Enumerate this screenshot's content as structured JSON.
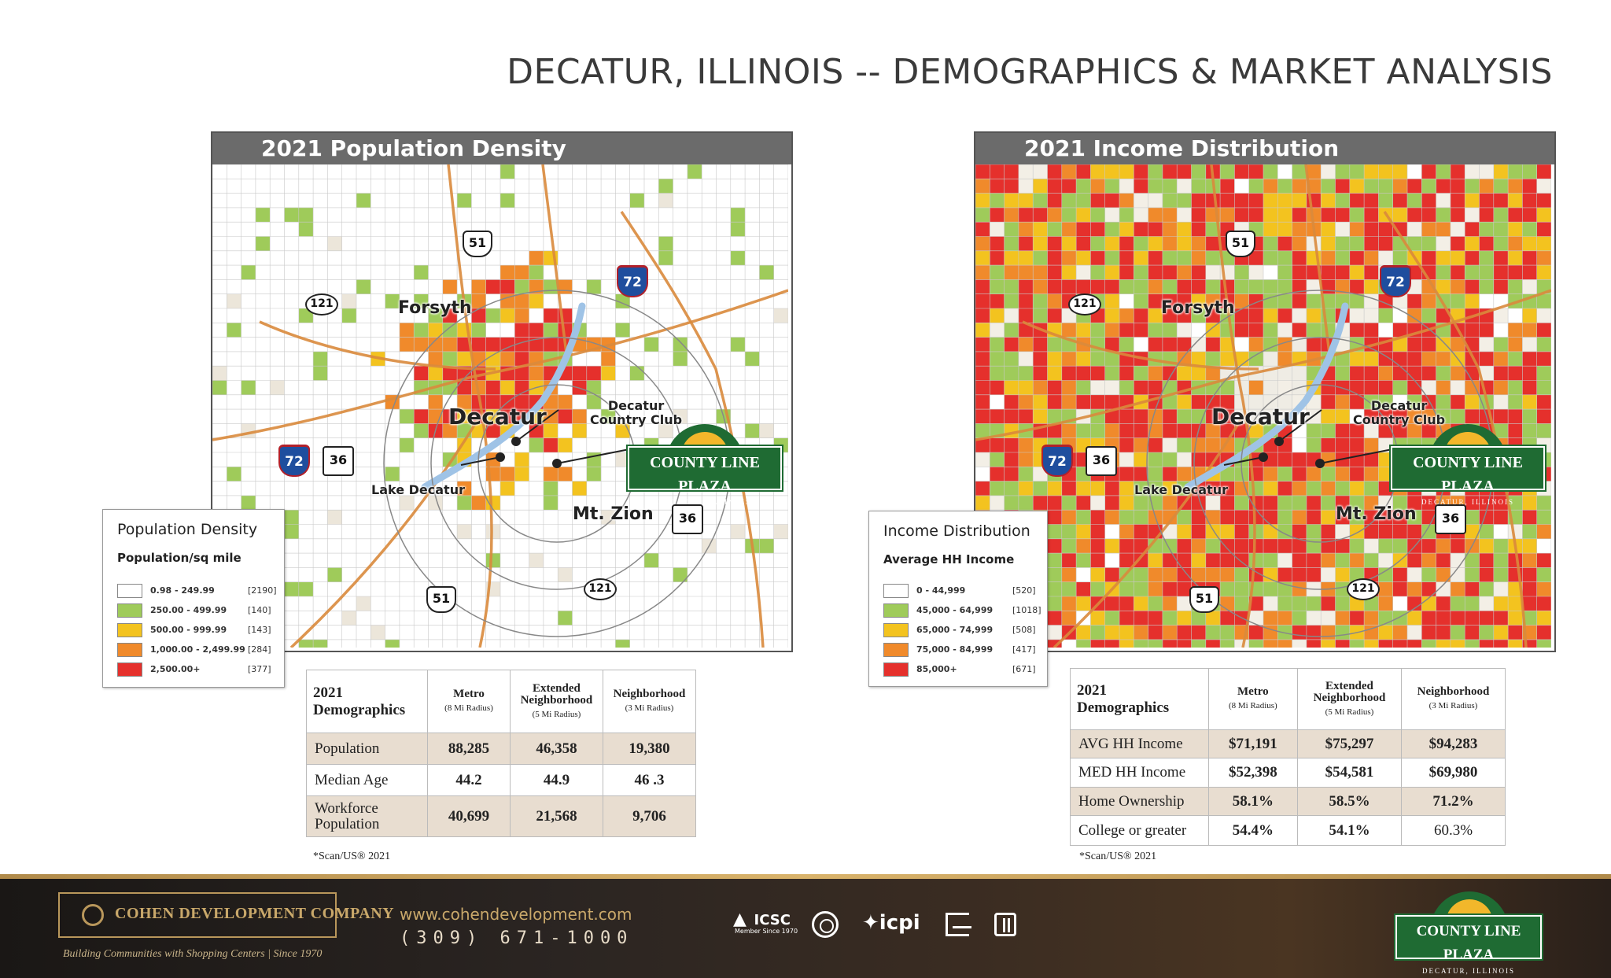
{
  "page_title": "DECATUR, ILLINOIS -- DEMOGRAPHICS & MARKET ANALYSIS",
  "colors": {
    "white": "#ffffff",
    "green": "#9fcb5a",
    "yellow": "#f3c31f",
    "orange": "#f08a2b",
    "red": "#e5302c",
    "header_gray": "#6b6b6b",
    "plaza_green": "#1f6b33",
    "footer_gold": "#c9a86a"
  },
  "density_map": {
    "title": "2021 Population Density",
    "labels": {
      "forsyth": "Forsyth",
      "decatur": "Decatur",
      "country_club": "Decatur\nCountry Club",
      "lake_decatur": "Lake Decatur",
      "mt_zion": "Mt. Zion"
    },
    "shields": {
      "us51_top": "51",
      "i72_top": "72",
      "r121_left": "121",
      "i72_left": "72",
      "us36_left": "36",
      "us36_right": "36",
      "r121_bottom": "121",
      "us51_bottom": "51"
    }
  },
  "income_map": {
    "title": "2021 Income Distribution",
    "labels": {
      "forsyth": "Forsyth",
      "decatur": "Decatur",
      "country_club": "Decatur\nCountry Club",
      "lake_decatur": "Lake Decatur",
      "mt_zion": "Mt. Zion"
    },
    "shields": {
      "us51_top": "51",
      "i72_top": "72",
      "r121_left": "121",
      "i72_left": "72",
      "us36_left": "36",
      "us36_right": "36",
      "r121_bottom": "121",
      "us51_bottom": "51"
    }
  },
  "plaza_logo": {
    "name": "COUNTY LINE PLAZA",
    "sub": "DECATUR, ILLINOIS"
  },
  "density_legend": {
    "title": "Population Density",
    "subtitle": "Population/sq mile",
    "rows": [
      {
        "label": "0.98 - 249.99",
        "count": "[2190]",
        "color": "#ffffff"
      },
      {
        "label": "250.00 - 499.99",
        "count": "[140]",
        "color": "#9fcb5a"
      },
      {
        "label": "500.00 - 999.99",
        "count": "[143]",
        "color": "#f3c31f"
      },
      {
        "label": "1,000.00 - 2,499.99",
        "count": "[284]",
        "color": "#f08a2b"
      },
      {
        "label": "2,500.00+",
        "count": "[377]",
        "color": "#e5302c"
      }
    ]
  },
  "income_legend": {
    "title": "Income Distribution",
    "subtitle": "Average HH Income",
    "rows": [
      {
        "label": "0 - 44,999",
        "count": "[520]",
        "color": "#ffffff"
      },
      {
        "label": "45,000 - 64,999",
        "count": "[1018]",
        "color": "#9fcb5a"
      },
      {
        "label": "65,000 - 74,999",
        "count": "[508]",
        "color": "#f3c31f"
      },
      {
        "label": "75,000 - 84,999",
        "count": "[417]",
        "color": "#f08a2b"
      },
      {
        "label": "85,000+",
        "count": "[671]",
        "color": "#e5302c"
      }
    ]
  },
  "table_left": {
    "corner": "2021\nDemographics",
    "columns": [
      {
        "name": "Metro",
        "sub": "(8 Mi Radius)"
      },
      {
        "name": "Extended\nNeighborhood",
        "sub": "(5 Mi Radius)"
      },
      {
        "name": "Neighborhood",
        "sub": "(3 Mi Radius)"
      }
    ],
    "rows": [
      {
        "label": "Population",
        "values": [
          "88,285",
          "46,358",
          "19,380"
        ]
      },
      {
        "label": "Median Age",
        "values": [
          "44.2",
          "44.9",
          "46 .3"
        ]
      },
      {
        "label": "Workforce\nPopulation",
        "values": [
          "40,699",
          "21,568",
          "9,706"
        ]
      }
    ],
    "source": "*Scan/US® 2021"
  },
  "table_right": {
    "corner": "2021\nDemographics",
    "columns": [
      {
        "name": "Metro",
        "sub": "(8 Mi Radius)"
      },
      {
        "name": "Extended\nNeighborhood",
        "sub": "(5 Mi Radius)"
      },
      {
        "name": "Neighborhood",
        "sub": "(3 Mi Radius)"
      }
    ],
    "rows": [
      {
        "label": "AVG HH Income",
        "values": [
          "$71,191",
          "$75,297",
          "$94,283"
        ]
      },
      {
        "label": "MED HH Income",
        "values": [
          "$52,398",
          "$54,581",
          "$69,980"
        ]
      },
      {
        "label": "Home Ownership",
        "values": [
          "58.1%",
          "58.5%",
          "71.2%"
        ]
      },
      {
        "label": "College or greater",
        "values": [
          "54.4%",
          "54.1%",
          "60.3%"
        ]
      }
    ],
    "source": "*Scan/US® 2021"
  },
  "footer": {
    "company": "COHEN DEVELOPMENT COMPANY",
    "tagline": "Building Communities with Shopping Centers  |  Since 1970",
    "website": "www.cohendevelopment.com",
    "phone": "(309) 671-1000",
    "icsc": "ICSC",
    "icsc_sub": "Member Since 1970",
    "icpi": "icpi"
  }
}
